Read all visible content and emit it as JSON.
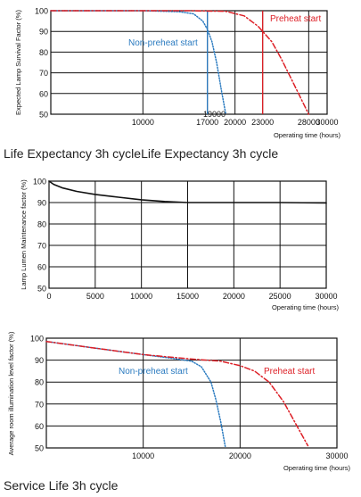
{
  "chart_data": [
    {
      "type": "line",
      "caption": "Life Expectancy 3h cycleLife Expectancy 3h cycle",
      "xlabel": "Operating time (hours)",
      "ylabel": "Expected Lamp Survival Factor (%)",
      "xlim": [
        0,
        30000
      ],
      "ylim": [
        50,
        100
      ],
      "xticks": [
        "10000",
        "17000",
        "20000",
        "23000",
        "28000",
        "30000"
      ],
      "xtick_values": [
        10000,
        17000,
        20000,
        23000,
        28000,
        30000
      ],
      "yticks": [
        50,
        60,
        70,
        80,
        90,
        100
      ],
      "grid": true,
      "colors": {
        "non_preheat": "#2b7bc0",
        "preheat": "#dd1f26",
        "frame": "#111111"
      },
      "series": [
        {
          "name": "Non-preheat start",
          "style": "dotted",
          "x": [
            0,
            10000,
            14000,
            15500,
            16500,
            17000,
            17500,
            18000,
            18500,
            19000
          ],
          "y": [
            100,
            100,
            99.5,
            98.5,
            95,
            91,
            85,
            75,
            62,
            50
          ]
        },
        {
          "name": "Preheat start",
          "style": "dashdot",
          "x": [
            0,
            15000,
            19000,
            21000,
            22500,
            23000,
            24000,
            25000,
            26000,
            27000,
            28000
          ],
          "y": [
            100,
            100,
            99.7,
            97.5,
            92.5,
            90,
            85,
            77,
            68,
            59,
            50
          ]
        }
      ],
      "annotations": [
        {
          "text": "Non-preheat start",
          "color": "#2b7bc0"
        },
        {
          "text": "Preheat start",
          "color": "#dd1f26"
        },
        {
          "text": "19000",
          "color": "#111111"
        }
      ],
      "markers": [
        {
          "x": 17000,
          "color": "#2b7bc0"
        },
        {
          "x": 23000,
          "color": "#dd1f26"
        }
      ]
    },
    {
      "type": "line",
      "caption": "",
      "xlabel": "Operating time (hours)",
      "ylabel": "Lamp Lumen Maintenance factor (%)",
      "xlim": [
        0,
        30000
      ],
      "ylim": [
        50,
        100
      ],
      "xticks": [
        "0",
        "5000",
        "10000",
        "15000",
        "20000",
        "25000",
        "30000"
      ],
      "xtick_values": [
        0,
        5000,
        10000,
        15000,
        20000,
        25000,
        30000
      ],
      "yticks": [
        50,
        60,
        70,
        80,
        90,
        100
      ],
      "grid": true,
      "series": [
        {
          "style": "solid",
          "x": [
            0,
            500,
            1500,
            3000,
            5000,
            7500,
            10000,
            12500,
            15000,
            20000,
            25000,
            30000
          ],
          "y": [
            100,
            98.5,
            96.8,
            95.2,
            93.8,
            92.5,
            91.3,
            90.5,
            90,
            90,
            90,
            89.8
          ]
        }
      ]
    },
    {
      "type": "line",
      "caption": "Service Life 3h cycle",
      "xlabel": "Operating time (hours)",
      "ylabel": "Average room illumination level factor (%)",
      "xlim": [
        0,
        30000
      ],
      "ylim": [
        50,
        100
      ],
      "xticks": [
        "10000",
        "20000",
        "30000"
      ],
      "xtick_values": [
        10000,
        20000,
        30000
      ],
      "yticks": [
        50,
        60,
        70,
        80,
        90,
        100
      ],
      "grid": true,
      "series": [
        {
          "name": "Non-preheat start",
          "style": "dotted",
          "x": [
            0,
            5000,
            10000,
            13000,
            15000,
            16000,
            17000,
            17500,
            18000,
            18500
          ],
          "y": [
            98.5,
            95.5,
            92.5,
            90.8,
            89.5,
            87,
            80,
            72,
            62,
            50
          ]
        },
        {
          "name": "Preheat start",
          "style": "dashdot",
          "x": [
            0,
            5000,
            10000,
            15000,
            18000,
            20000,
            21500,
            23000,
            24500,
            26000,
            27000
          ],
          "y": [
            98.5,
            95.5,
            92.5,
            90.5,
            89.5,
            87.5,
            85,
            80,
            71,
            59,
            51
          ]
        }
      ],
      "annotations": [
        {
          "text": "Non-preheat start",
          "color": "#2b7bc0"
        },
        {
          "text": "Preheat start",
          "color": "#dd1f26"
        }
      ]
    }
  ]
}
